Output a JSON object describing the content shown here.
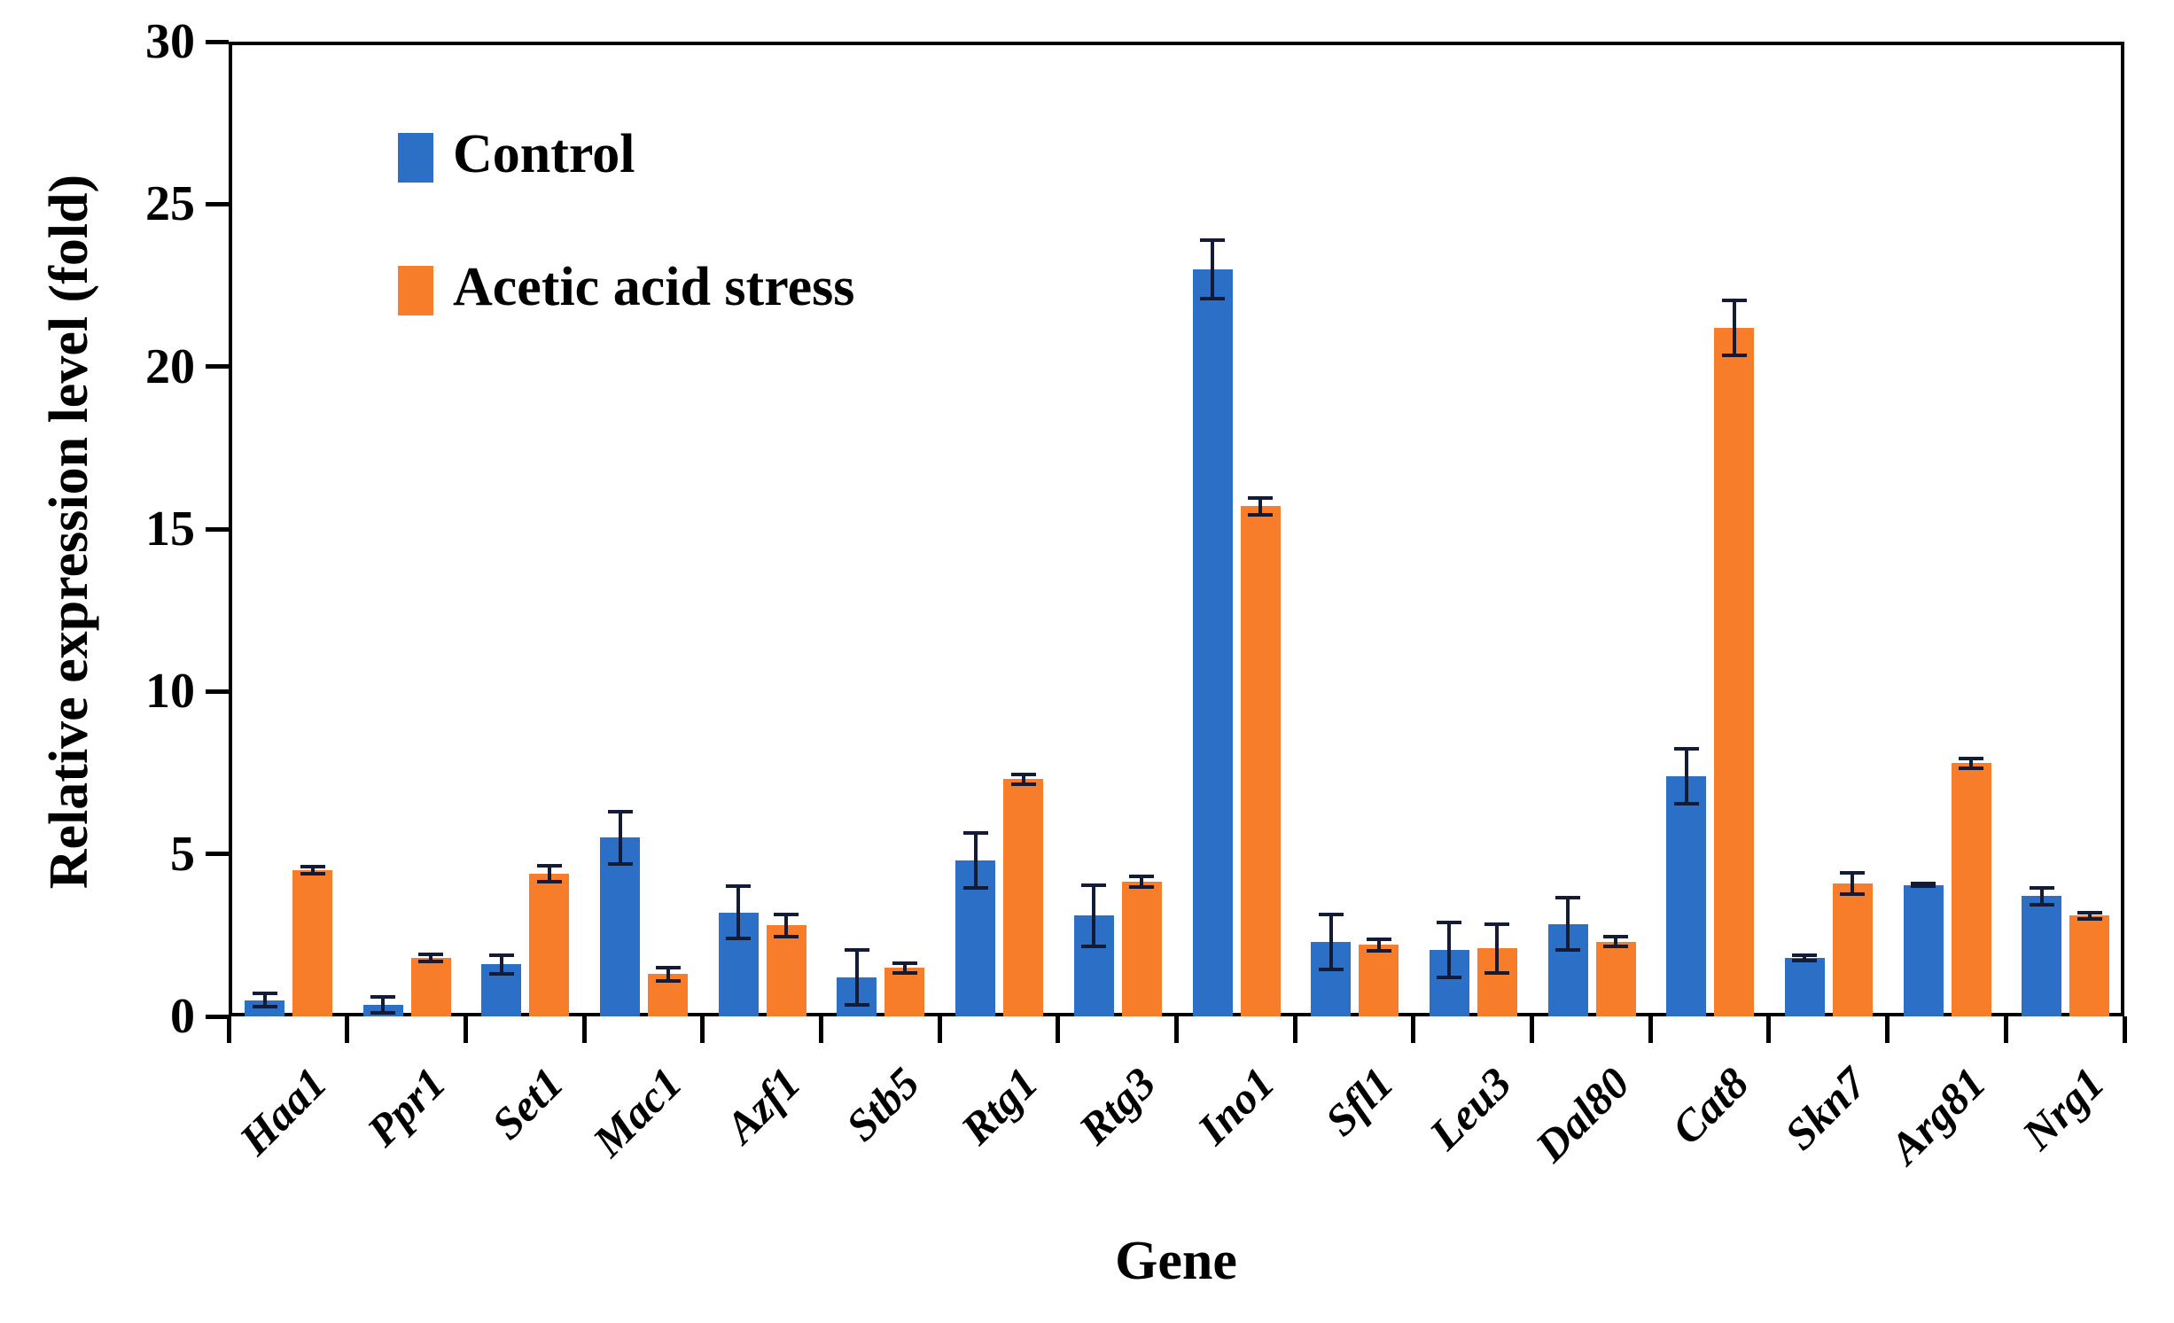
{
  "chart_data": {
    "type": "bar",
    "title": "",
    "xlabel": "Gene",
    "ylabel": "Relative expression level (fold)",
    "ylim": [
      0,
      30
    ],
    "yticks": [
      0,
      5,
      10,
      15,
      20,
      25,
      30
    ],
    "grid": false,
    "error_bars": true,
    "legend_position": "top-left",
    "categories": [
      "Haa1",
      "Ppr1",
      "Set1",
      "Mac1",
      "Azf1",
      "Stb5",
      "Rtg1",
      "Rtg3",
      "Ino1",
      "Sfl1",
      "Leu3",
      "Dal80",
      "Cat8",
      "Skn7",
      "Arg81",
      "Nrg1"
    ],
    "series": [
      {
        "name": "Control",
        "color": "#2b6fc7",
        "values": [
          0.5,
          0.35,
          1.6,
          5.5,
          3.2,
          1.2,
          4.8,
          3.1,
          23.0,
          2.3,
          2.05,
          2.85,
          7.4,
          1.8,
          4.05,
          3.7
        ],
        "errors": [
          0.2,
          0.25,
          0.28,
          0.8,
          0.8,
          0.85,
          0.85,
          0.95,
          0.9,
          0.85,
          0.85,
          0.8,
          0.85,
          0.08,
          0.05,
          0.25
        ]
      },
      {
        "name": "Acetic acid stress",
        "color": "#f87d2b",
        "values": [
          4.5,
          1.8,
          4.4,
          1.3,
          2.8,
          1.5,
          7.3,
          4.15,
          15.7,
          2.2,
          2.1,
          2.3,
          21.2,
          4.1,
          7.8,
          3.1
        ],
        "errors": [
          0.1,
          0.12,
          0.25,
          0.2,
          0.35,
          0.15,
          0.15,
          0.16,
          0.25,
          0.18,
          0.75,
          0.15,
          0.85,
          0.33,
          0.15,
          0.1
        ]
      }
    ],
    "error_bar_color": "#131b35"
  }
}
